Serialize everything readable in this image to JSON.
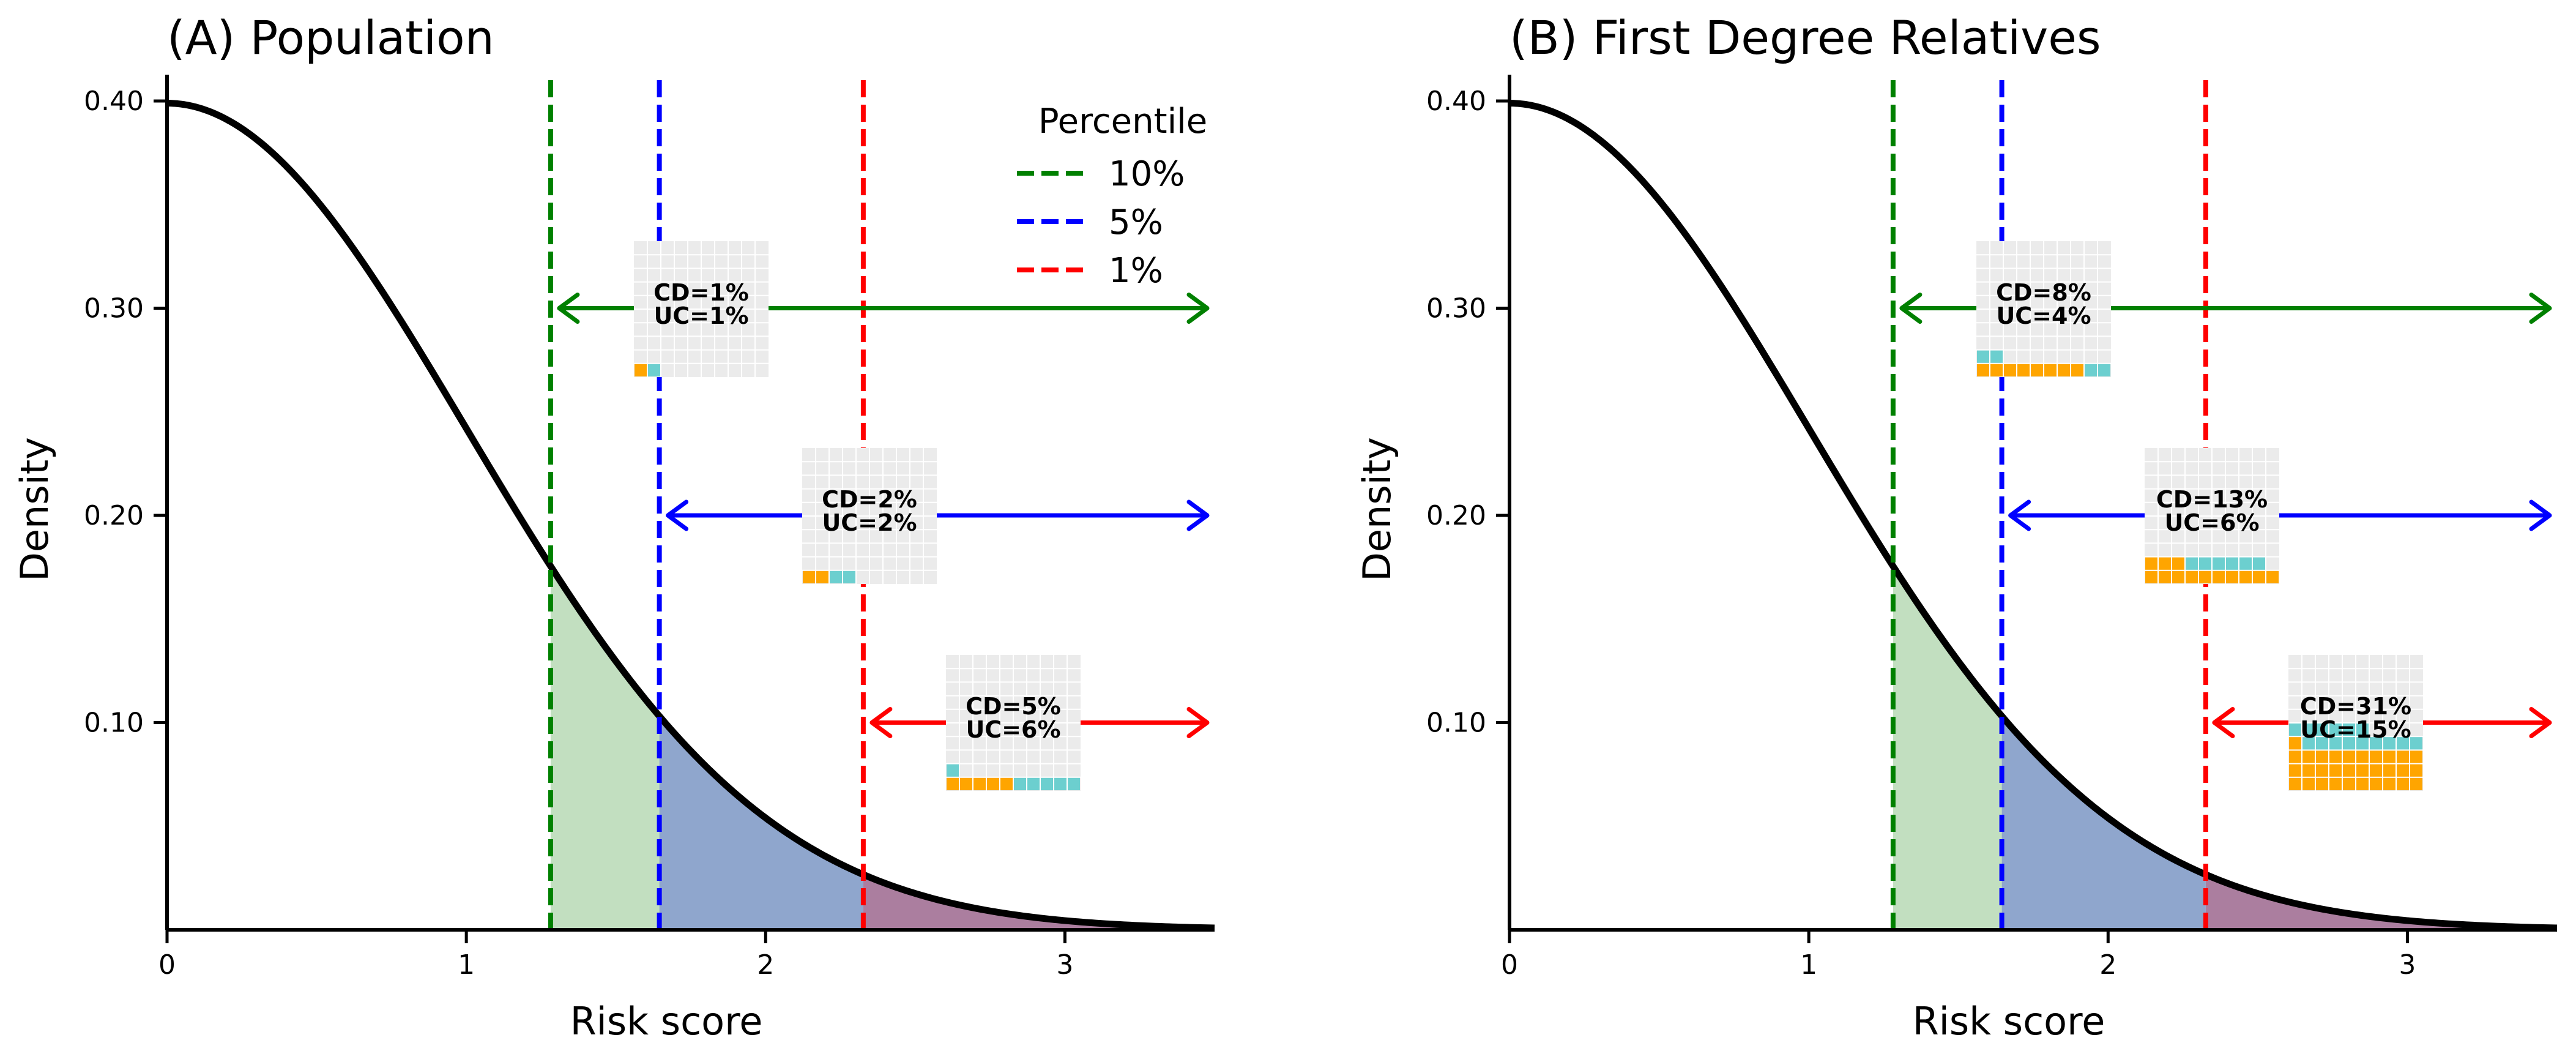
{
  "colors": {
    "curve": "#000000",
    "p10": "#008000",
    "p5": "#0000ff",
    "p1": "#ff0000",
    "fill10": "#c2dfc0",
    "fill5": "#8fa6cd",
    "fill1": "#ab7e9f",
    "grid_bg": "#ebebeb",
    "cd_square": "#ffa500",
    "uc_square": "#6ccfcf"
  },
  "chart_data": [
    {
      "type": "area",
      "title": "(A) Population",
      "xlabel": "Risk score",
      "ylabel": "Density",
      "xlim": [
        0,
        3.5
      ],
      "ylim": [
        0,
        0.4
      ],
      "xticks": [
        0,
        1,
        2,
        3
      ],
      "xtick_labels": [
        "0",
        "1",
        "2",
        "3"
      ],
      "yticks": [
        0.1,
        0.2,
        0.3,
        0.4
      ],
      "ytick_labels": [
        "0.10",
        "0.20",
        "0.30",
        "0.40"
      ],
      "curve": "standard normal density",
      "percentile_lines": [
        {
          "label": "10%",
          "x": 1.2816,
          "color": "#008000"
        },
        {
          "label": "5%",
          "x": 1.6449,
          "color": "#0000ff"
        },
        {
          "label": "1%",
          "x": 2.3263,
          "color": "#ff0000"
        }
      ],
      "annotations": [
        {
          "percentile": "10%",
          "cd_label": "CD=1%",
          "uc_label": "UC=1%",
          "cd": 1,
          "uc": 1,
          "arrow_y": 0.3
        },
        {
          "percentile": "5%",
          "cd_label": "CD=2%",
          "uc_label": "UC=2%",
          "cd": 2,
          "uc": 2,
          "arrow_y": 0.2
        },
        {
          "percentile": "1%",
          "cd_label": "CD=5%",
          "uc_label": "UC=6%",
          "cd": 5,
          "uc": 6,
          "arrow_y": 0.1
        }
      ],
      "legend": {
        "title": "Percentile",
        "position": "top-right"
      }
    },
    {
      "type": "area",
      "title": "(B) First Degree Relatives",
      "xlabel": "Risk score",
      "ylabel": "Density",
      "xlim": [
        0,
        3.5
      ],
      "ylim": [
        0,
        0.4
      ],
      "xticks": [
        0,
        1,
        2,
        3
      ],
      "xtick_labels": [
        "0",
        "1",
        "2",
        "3"
      ],
      "yticks": [
        0.1,
        0.2,
        0.3,
        0.4
      ],
      "ytick_labels": [
        "0.10",
        "0.20",
        "0.30",
        "0.40"
      ],
      "curve": "standard normal density",
      "percentile_lines": [
        {
          "label": "10%",
          "x": 1.2816,
          "color": "#008000"
        },
        {
          "label": "5%",
          "x": 1.6449,
          "color": "#0000ff"
        },
        {
          "label": "1%",
          "x": 2.3263,
          "color": "#ff0000"
        }
      ],
      "annotations": [
        {
          "percentile": "10%",
          "cd_label": "CD=8%",
          "uc_label": "UC=4%",
          "cd": 8,
          "uc": 4,
          "arrow_y": 0.3
        },
        {
          "percentile": "5%",
          "cd_label": "CD=13%",
          "uc_label": "UC=6%",
          "cd": 13,
          "uc": 6,
          "arrow_y": 0.2
        },
        {
          "percentile": "1%",
          "cd_label": "CD=31%",
          "uc_label": "UC=15%",
          "cd": 31,
          "uc": 15,
          "arrow_y": 0.1
        }
      ]
    }
  ]
}
